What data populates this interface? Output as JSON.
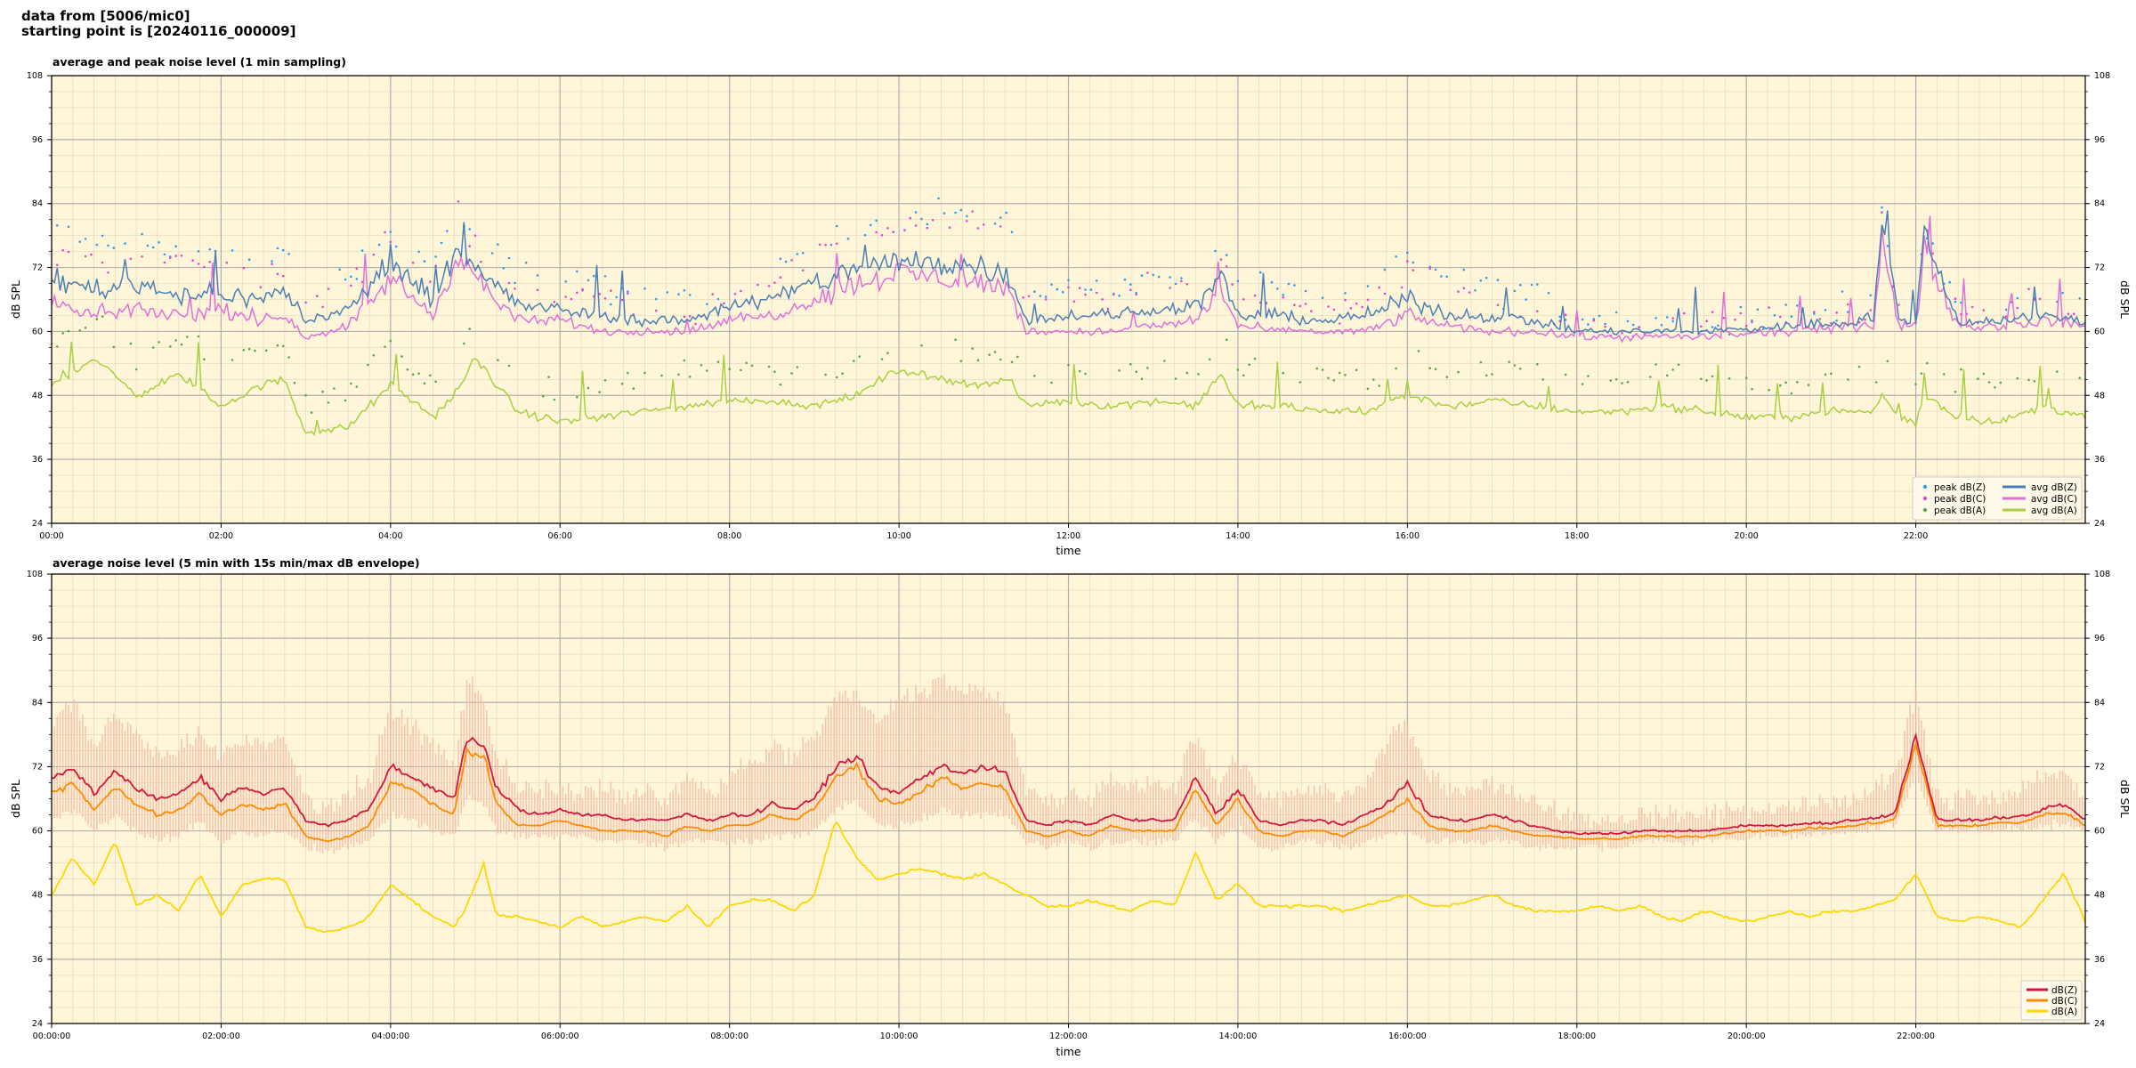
{
  "header": {
    "line1": "data from [5006/mic0]",
    "line2": "starting point is [20240116_000009]"
  },
  "colors": {
    "background": "#fff6da",
    "grid_major": "#b0b0b0",
    "grid_minor": "#e6dcc2",
    "peak_z": "#2a9df4",
    "peak_c": "#ee44cc",
    "peak_a": "#5aa845",
    "avg_z": "#4a7fb5",
    "avg_c": "#e070d8",
    "avg_a": "#a8d040",
    "z_line": "#d3163d",
    "c_line": "#ff8c00",
    "a_line": "#ffd700",
    "envelope": "#f4b6a0"
  },
  "chart_data": [
    {
      "type": "line",
      "title": "average and peak noise level (1 min sampling)",
      "xlabel": "time",
      "ylabel": "dB SPL",
      "ylabel_right": "dB SPL",
      "xlim": [
        0,
        24
      ],
      "ylim": [
        24,
        108
      ],
      "x_tick_labels": [
        "00:00",
        "02:00",
        "04:00",
        "06:00",
        "08:00",
        "10:00",
        "12:00",
        "14:00",
        "16:00",
        "18:00",
        "20:00",
        "22:00"
      ],
      "y_tick_labels": [
        "24",
        "36",
        "48",
        "60",
        "72",
        "84",
        "96",
        "108"
      ],
      "grid": true,
      "legend_position": "bottom-right",
      "legend": [
        "peak dB(Z)",
        "peak dB(C)",
        "peak dB(A)",
        "avg dB(Z)",
        "avg dB(C)",
        "avg dB(A)"
      ],
      "x": [
        0,
        0.5,
        1,
        1.5,
        2,
        2.5,
        2.75,
        3,
        3.5,
        4,
        4.5,
        4.8,
        5.0,
        5.5,
        6,
        6.5,
        7,
        7.5,
        8,
        8.5,
        9,
        9.5,
        10,
        10.5,
        11,
        11.3,
        11.5,
        12,
        12.5,
        13,
        13.5,
        13.8,
        14,
        14.5,
        15,
        15.5,
        16,
        16.5,
        17,
        17.5,
        18,
        18.5,
        19,
        19.5,
        20,
        20.5,
        21,
        21.3,
        21.5,
        21.6,
        21.8,
        22.0,
        22.1,
        22.5,
        23,
        23.5,
        24
      ],
      "series": [
        {
          "name": "avg dB(Z)",
          "values": [
            70,
            68,
            69,
            67,
            67,
            66,
            68,
            62,
            64,
            73,
            66,
            77,
            72,
            65,
            64,
            63,
            62,
            62,
            65,
            66,
            69,
            72,
            73,
            73,
            72,
            71,
            62,
            63,
            63,
            64,
            65,
            70,
            63,
            63,
            62,
            63,
            66,
            63,
            63,
            62,
            60,
            60,
            60,
            60,
            60.5,
            61,
            61.5,
            62,
            63,
            80,
            62,
            62,
            78,
            62,
            62,
            63,
            62
          ]
        },
        {
          "name": "avg dB(C)",
          "values": [
            65,
            63,
            64,
            63,
            64,
            62,
            63,
            59,
            61,
            70,
            63,
            75,
            70,
            62,
            62,
            60,
            60,
            60,
            62,
            63,
            66,
            69,
            71,
            70,
            69,
            68,
            60,
            60,
            60,
            61,
            62,
            68,
            61,
            60,
            60,
            60,
            63,
            61,
            60,
            60,
            59,
            59,
            59,
            59,
            59.5,
            60,
            60.5,
            61,
            61,
            78,
            61,
            61,
            75,
            61,
            61,
            62,
            61
          ]
        },
        {
          "name": "avg dB(A)",
          "values": [
            50,
            55,
            48,
            52,
            46,
            50,
            51,
            41,
            42,
            50,
            44,
            49,
            55,
            45,
            43,
            44,
            45,
            46,
            47,
            47,
            46,
            48,
            53,
            51,
            50,
            51,
            46,
            47,
            46,
            47,
            46,
            52,
            46,
            46,
            45,
            45,
            48,
            46,
            47,
            46,
            45,
            45,
            46,
            45,
            44,
            44,
            45,
            45,
            45,
            48,
            44,
            43,
            48,
            44,
            43,
            46,
            44
          ]
        },
        {
          "name": "peak dB(Z)",
          "values": [
            78,
            76,
            77,
            75,
            75,
            73,
            75,
            68,
            70,
            80,
            72,
            83,
            78,
            70,
            69,
            68,
            67,
            66,
            70,
            72,
            76,
            80,
            82,
            83,
            82,
            80,
            67,
            68,
            68,
            70,
            71,
            76,
            68,
            68,
            66,
            67,
            74,
            70,
            68,
            66,
            63,
            62,
            62,
            63,
            63,
            64,
            64,
            65,
            66,
            82,
            64,
            64,
            80,
            64,
            64,
            67,
            65
          ]
        },
        {
          "name": "peak dB(C)",
          "values": [
            75,
            73,
            74,
            73,
            73,
            71,
            73,
            66,
            68,
            78,
            70,
            82,
            76,
            68,
            67,
            66,
            65,
            64,
            68,
            70,
            74,
            78,
            80,
            81,
            80,
            78,
            65,
            66,
            66,
            68,
            69,
            74,
            66,
            66,
            64,
            65,
            72,
            68,
            66,
            64,
            62,
            61,
            61,
            62,
            62,
            63,
            63,
            64,
            65,
            81,
            63,
            63,
            79,
            63,
            63,
            66,
            64
          ]
        },
        {
          "name": "peak dB(A)",
          "values": [
            58,
            62,
            55,
            59,
            53,
            57,
            58,
            47,
            48,
            56,
            50,
            55,
            60,
            51,
            49,
            50,
            51,
            52,
            53,
            53,
            52,
            54,
            58,
            56,
            55,
            56,
            52,
            53,
            52,
            53,
            52,
            58,
            52,
            52,
            51,
            51,
            54,
            52,
            53,
            52,
            51,
            51,
            52,
            51,
            50,
            50,
            51,
            51,
            51,
            54,
            50,
            49,
            54,
            50,
            49,
            52,
            50
          ]
        }
      ]
    },
    {
      "type": "line",
      "title": "average noise level (5 min with 15s min/max dB envelope)",
      "xlabel": "time",
      "ylabel": "dB SPL",
      "ylabel_right": "dB SPL",
      "xlim": [
        0,
        24
      ],
      "ylim": [
        24,
        108
      ],
      "x_tick_labels": [
        "00:00:00",
        "02:00:00",
        "04:00:00",
        "06:00:00",
        "08:00:00",
        "10:00:00",
        "12:00:00",
        "14:00:00",
        "16:00:00",
        "18:00:00",
        "20:00:00",
        "22:00:00"
      ],
      "y_tick_labels": [
        "24",
        "36",
        "48",
        "60",
        "72",
        "84",
        "96",
        "108"
      ],
      "grid": true,
      "legend_position": "bottom-right",
      "legend": [
        "dB(Z)",
        "dB(C)",
        "dB(A)"
      ],
      "x": [
        0,
        0.25,
        0.5,
        0.75,
        1,
        1.25,
        1.5,
        1.75,
        2,
        2.25,
        2.5,
        2.75,
        3,
        3.25,
        3.5,
        3.75,
        4,
        4.25,
        4.5,
        4.75,
        4.9,
        5.1,
        5.25,
        5.5,
        5.75,
        6,
        6.25,
        6.5,
        6.75,
        7,
        7.25,
        7.5,
        7.75,
        8,
        8.25,
        8.5,
        8.75,
        9,
        9.25,
        9.5,
        9.75,
        10,
        10.25,
        10.5,
        10.75,
        11,
        11.25,
        11.5,
        11.75,
        12,
        12.25,
        12.5,
        12.75,
        13,
        13.25,
        13.5,
        13.75,
        14,
        14.25,
        14.5,
        14.75,
        15,
        15.25,
        15.5,
        15.75,
        16,
        16.25,
        16.5,
        16.75,
        17,
        17.25,
        17.5,
        17.75,
        18,
        18.25,
        18.5,
        18.75,
        19,
        19.25,
        19.5,
        19.75,
        20,
        20.25,
        20.5,
        20.75,
        21,
        21.25,
        21.5,
        21.75,
        22,
        22.25,
        22.5,
        22.75,
        23,
        23.25,
        23.5,
        23.75,
        24
      ],
      "series": [
        {
          "name": "dB(Z)",
          "values": [
            70,
            72,
            67,
            71,
            68,
            66,
            67,
            70,
            66,
            68,
            67,
            68,
            62,
            61,
            62,
            64,
            72,
            70,
            68,
            66,
            77,
            76,
            68,
            64,
            63,
            64,
            63,
            63,
            62,
            62,
            62,
            63,
            62,
            63,
            63,
            65,
            64,
            66,
            72,
            74,
            68,
            67,
            70,
            72,
            71,
            72,
            71,
            62,
            61,
            62,
            61,
            63,
            62,
            62,
            62,
            70,
            63,
            68,
            62,
            61,
            62,
            62,
            61,
            63,
            65,
            69,
            63,
            62,
            62,
            63,
            62,
            61,
            60,
            59.5,
            59.5,
            59.5,
            60,
            60,
            60,
            60,
            60.5,
            61,
            61,
            61,
            61.5,
            61.5,
            62,
            62.5,
            63,
            78,
            62,
            62,
            62,
            62.5,
            62.5,
            64,
            65,
            62
          ]
        },
        {
          "name": "dB(C)",
          "values": [
            67,
            69,
            64,
            68,
            65,
            63,
            64,
            67,
            63,
            65,
            64,
            65,
            59,
            58,
            59,
            61,
            69,
            68,
            65,
            63,
            75,
            74,
            65,
            61,
            61,
            62,
            61,
            60,
            60,
            60,
            59,
            61,
            60,
            61,
            61,
            63,
            62,
            64,
            70,
            72,
            66,
            65,
            67,
            70,
            68,
            69,
            68,
            60,
            59,
            60,
            59,
            61,
            60,
            60,
            60,
            68,
            61,
            66,
            60,
            59,
            60,
            60,
            59,
            61,
            63,
            66,
            61,
            60,
            60,
            61,
            60,
            59,
            59,
            58.5,
            58.5,
            58.5,
            59,
            59,
            59,
            59,
            59.5,
            60,
            60,
            60,
            60.5,
            60.5,
            61,
            61.5,
            62,
            76,
            61,
            61,
            61,
            61.5,
            61.5,
            63,
            63.5,
            61
          ]
        },
        {
          "name": "dB(A)",
          "values": [
            48,
            55,
            50,
            58,
            46,
            48,
            45,
            52,
            44,
            50,
            51,
            51,
            42,
            41,
            42,
            44,
            50,
            47,
            44,
            42,
            46,
            54,
            44,
            44,
            43,
            42,
            44,
            42,
            43,
            44,
            43,
            46,
            42,
            46,
            47,
            47,
            45,
            48,
            62,
            55,
            51,
            52,
            53,
            52,
            51,
            52,
            50,
            48,
            46,
            46,
            47,
            46,
            45,
            47,
            46,
            56,
            47,
            50,
            46,
            46,
            46,
            46,
            45,
            46,
            47,
            48,
            46,
            46,
            47,
            48,
            46,
            45,
            45,
            45,
            46,
            45,
            46,
            44,
            43,
            45,
            44,
            43,
            44,
            45,
            44,
            45,
            45,
            46,
            47,
            52,
            44,
            43,
            44,
            43,
            42,
            47,
            52,
            43
          ]
        },
        {
          "name": "max",
          "values": [
            80,
            84,
            76,
            82,
            78,
            74,
            75,
            78,
            74,
            77,
            76,
            77,
            66,
            65,
            67,
            70,
            83,
            80,
            76,
            72,
            88,
            86,
            74,
            68,
            67,
            68,
            67,
            68,
            66,
            67,
            66,
            70,
            67,
            70,
            72,
            76,
            74,
            78,
            84,
            86,
            80,
            84,
            86,
            88,
            86,
            86,
            84,
            68,
            66,
            67,
            66,
            70,
            68,
            69,
            68,
            78,
            68,
            74,
            67,
            66,
            68,
            68,
            66,
            70,
            76,
            80,
            70,
            68,
            68,
            69,
            67,
            66,
            63,
            62,
            62,
            62,
            63,
            63,
            63,
            63,
            64,
            64,
            64,
            64,
            65,
            65,
            66,
            68,
            70,
            86,
            66,
            66,
            66,
            67,
            67,
            70,
            71,
            66
          ]
        },
        {
          "name": "min",
          "values": [
            62,
            64,
            60,
            63,
            60,
            58,
            59,
            62,
            58,
            60,
            59,
            60,
            57,
            56,
            57,
            58,
            63,
            62,
            60,
            59,
            66,
            65,
            60,
            59,
            59,
            59,
            59,
            58,
            58,
            58,
            57,
            58,
            58,
            58,
            58,
            59,
            59,
            60,
            64,
            66,
            61,
            61,
            62,
            64,
            63,
            63,
            63,
            58,
            57,
            58,
            57,
            58,
            58,
            58,
            58,
            62,
            58,
            61,
            57,
            57,
            58,
            58,
            57,
            58,
            59,
            60,
            58,
            58,
            58,
            58,
            58,
            57,
            57,
            57,
            57,
            57,
            58,
            58,
            58,
            58,
            58.5,
            59,
            59,
            59,
            59.5,
            59.5,
            60,
            60.5,
            61,
            70,
            60,
            60,
            60,
            60.5,
            60.5,
            61,
            61.5,
            60
          ]
        }
      ]
    }
  ]
}
